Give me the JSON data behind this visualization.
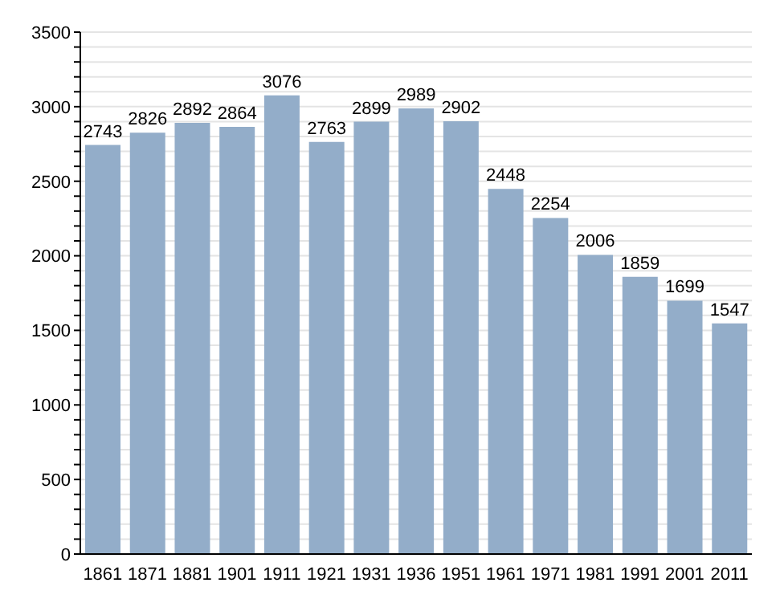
{
  "chart_data": {
    "type": "bar",
    "categories": [
      "1861",
      "1871",
      "1881",
      "1901",
      "1911",
      "1921",
      "1931",
      "1936",
      "1951",
      "1961",
      "1971",
      "1981",
      "1991",
      "2001",
      "2011"
    ],
    "values": [
      2743,
      2826,
      2892,
      2864,
      3076,
      2763,
      2899,
      2989,
      2902,
      2448,
      2254,
      2006,
      1859,
      1699,
      1547
    ],
    "color": "#93adc9",
    "ylim": [
      0,
      3500
    ],
    "yticks": [
      0,
      {
        "value": 100,
        "label": null
      },
      {
        "value": 200,
        "label": null
      },
      {
        "value": 300,
        "label": null
      },
      {
        "value": 400,
        "label": null
      },
      500,
      {
        "value": 600,
        "label": null
      },
      {
        "value": 700,
        "label": null
      },
      {
        "value": 800,
        "label": null
      },
      {
        "value": 900,
        "label": null
      },
      1000,
      {
        "value": 1100,
        "label": null
      },
      {
        "value": 1200,
        "label": null
      },
      {
        "value": 1300,
        "label": null
      },
      {
        "value": 1400,
        "label": null
      },
      1500,
      {
        "value": 1600,
        "label": null
      },
      {
        "value": 1700,
        "label": null
      },
      {
        "value": 1800,
        "label": null
      },
      {
        "value": 1900,
        "label": null
      },
      2000,
      {
        "value": 2100,
        "label": null
      },
      {
        "value": 2200,
        "label": null
      },
      {
        "value": 2300,
        "label": null
      },
      {
        "value": 2400,
        "label": null
      },
      2500,
      {
        "value": 2600,
        "label": null
      },
      {
        "value": 2700,
        "label": null
      },
      {
        "value": 2800,
        "label": null
      },
      {
        "value": 2900,
        "label": null
      },
      3000,
      {
        "value": 3100,
        "label": null
      },
      {
        "value": 3200,
        "label": null
      },
      {
        "value": 3300,
        "label": null
      },
      {
        "value": 3400,
        "label": null
      },
      3500
    ],
    "grid": "y",
    "data_labels": true
  }
}
